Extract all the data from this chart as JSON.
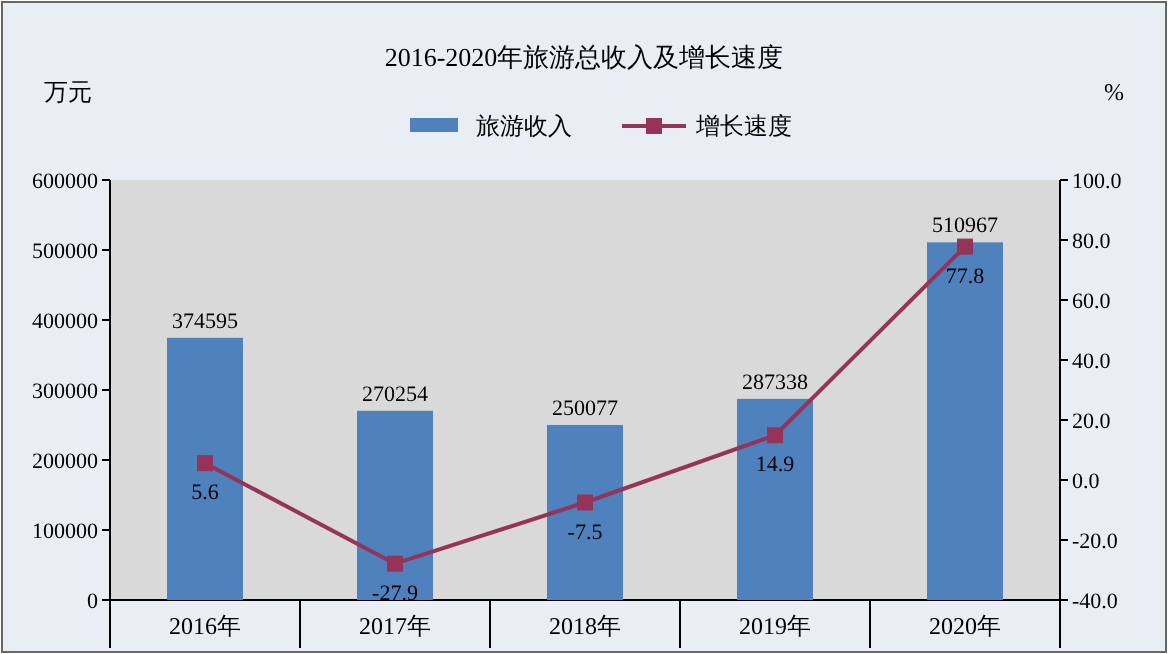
{
  "chart_data": {
    "type": "bar",
    "title": "2016-2020年旅游总收入及增长速度",
    "ylabel": "万元",
    "y2label": "%",
    "categories": [
      "2016年",
      "2017年",
      "2018年",
      "2019年",
      "2020年"
    ],
    "series": [
      {
        "name": "旅游收入",
        "color": "#4f81bd",
        "values": [
          374595,
          270254,
          250077,
          287338,
          510967
        ]
      },
      {
        "name": "增长速度",
        "type": "line",
        "axis": "y2",
        "color": "#953359",
        "values": [
          5.6,
          -27.9,
          -7.5,
          14.9,
          77.8
        ]
      }
    ],
    "ylim": [
      0,
      600000
    ],
    "yticks": [
      0,
      100000,
      200000,
      300000,
      400000,
      500000,
      600000
    ],
    "y2lim": [
      -40,
      100
    ],
    "y2ticks": [
      {
        "value": -40,
        "label": "-40.0"
      },
      {
        "value": -20,
        "label": "-20.0"
      },
      {
        "value": 0,
        "label": "0.0"
      },
      {
        "value": 20,
        "label": "20.0"
      },
      {
        "value": 40,
        "label": "40.0"
      },
      {
        "value": 60,
        "label": "60.0"
      },
      {
        "value": 80,
        "label": "80.0"
      },
      {
        "value": 100,
        "label": "100.0"
      }
    ],
    "marker": "square",
    "legend": "top",
    "data_labels": true
  }
}
